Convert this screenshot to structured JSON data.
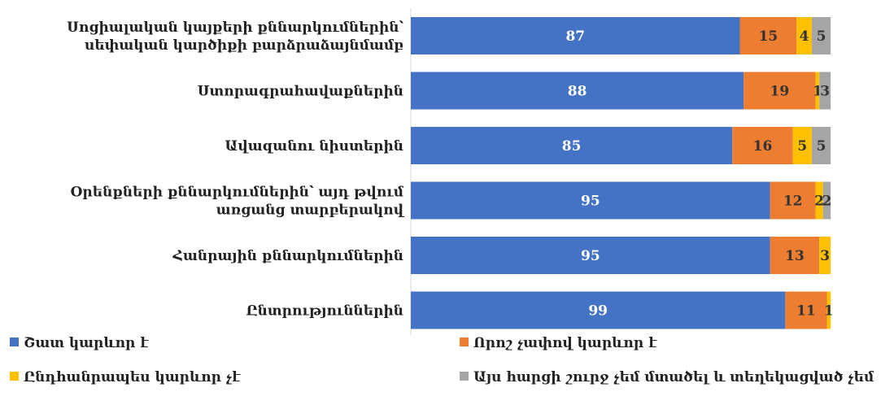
{
  "chart_data": {
    "type": "bar",
    "orientation": "horizontal",
    "stacked": true,
    "grid": false,
    "legend_position": "bottom",
    "categories": [
      [
        "Սոցիալական կայքերի քննարկումներին՝",
        "սեփական կարծիքի բարձրաձայնմամբ"
      ],
      [
        "Ստորագրահավաքներին"
      ],
      [
        "Ավազանու նիստերին"
      ],
      [
        "Օրենքների քննարկումներին՝ այդ թվում",
        "առցանց տարբերակով"
      ],
      [
        "Հանրային քննարկումներին"
      ],
      [
        "Ընտրություններին"
      ]
    ],
    "series": [
      {
        "name": "Շատ կարևոր է",
        "color": "#4472c4",
        "label_color": "#ffffff",
        "values": [
          87,
          88,
          85,
          95,
          95,
          99
        ]
      },
      {
        "name": "Որոշ չափով կարևոր է",
        "color": "#ed7d31",
        "label_color": "#333333",
        "values": [
          15,
          19,
          16,
          12,
          13,
          11
        ]
      },
      {
        "name": "Ընդհանրապես կարևոր չէ",
        "color": "#ffc000",
        "label_color": "#333333",
        "values": [
          4,
          1,
          5,
          2,
          3,
          1
        ]
      },
      {
        "name": "Այս հարցի շուրջ չեմ մտածել և տեղեկացված չեմ",
        "color": "#a5a5a5",
        "label_color": "#333333",
        "values": [
          5,
          3,
          5,
          2,
          0,
          0
        ]
      }
    ],
    "data_labels": [
      [
        "87",
        "15",
        "4",
        "5"
      ],
      [
        "88",
        "19",
        "1",
        "3"
      ],
      [
        "85",
        "16",
        "5",
        "5"
      ],
      [
        "95",
        "12",
        "2",
        "2"
      ],
      [
        "95",
        "13",
        "3",
        ""
      ],
      [
        "99",
        "11",
        "1",
        ""
      ]
    ],
    "xlim": [
      0,
      111
    ]
  }
}
